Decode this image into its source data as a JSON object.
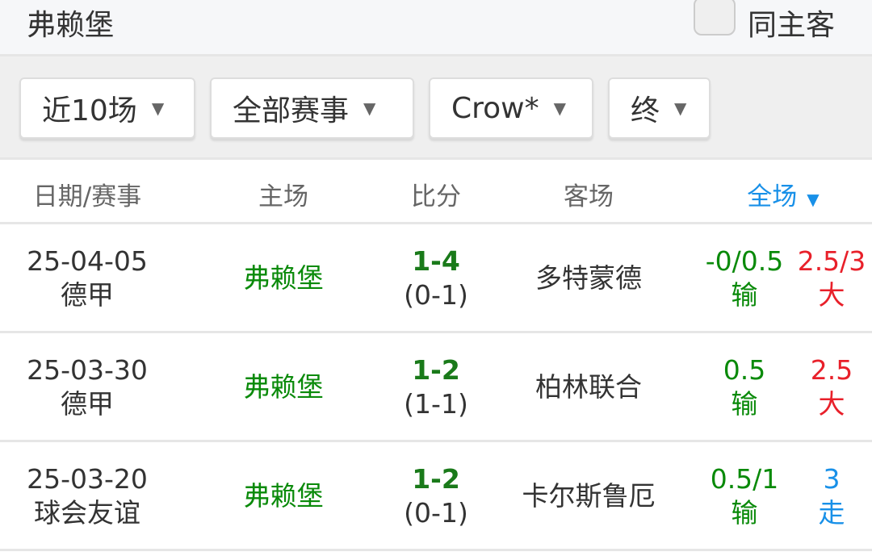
{
  "header": {
    "team": "弗赖堡",
    "same_home_away": "同主客"
  },
  "filters": [
    {
      "label": "近10场"
    },
    {
      "label": "全部赛事"
    },
    {
      "label": "Crow*"
    },
    {
      "label": "终"
    }
  ],
  "columns": {
    "date": "日期/赛事",
    "home": "主场",
    "score": "比分",
    "away": "客场",
    "full": "全场"
  },
  "colors": {
    "win": "#0a8a0a",
    "big": "#e8202a",
    "push": "#1890e8"
  },
  "rows": [
    {
      "date": "25-04-05",
      "league": "德甲",
      "home": "弗赖堡",
      "score": "1-4",
      "half": "(0-1)",
      "away": "多特蒙德",
      "hcap": "-0/0.5",
      "hres": "输",
      "ou": "2.5/3",
      "oures": "大",
      "oucolor": "red"
    },
    {
      "date": "25-03-30",
      "league": "德甲",
      "home": "弗赖堡",
      "score": "1-2",
      "half": "(1-1)",
      "away": "柏林联合",
      "hcap": "0.5",
      "hres": "输",
      "ou": "2.5",
      "oures": "大",
      "oucolor": "red"
    },
    {
      "date": "25-03-20",
      "league": "球会友谊",
      "home": "弗赖堡",
      "score": "1-2",
      "half": "(0-1)",
      "away": "卡尔斯鲁厄",
      "hcap": "0.5/1",
      "hres": "输",
      "ou": "3",
      "oures": "走",
      "oucolor": "blue"
    }
  ]
}
